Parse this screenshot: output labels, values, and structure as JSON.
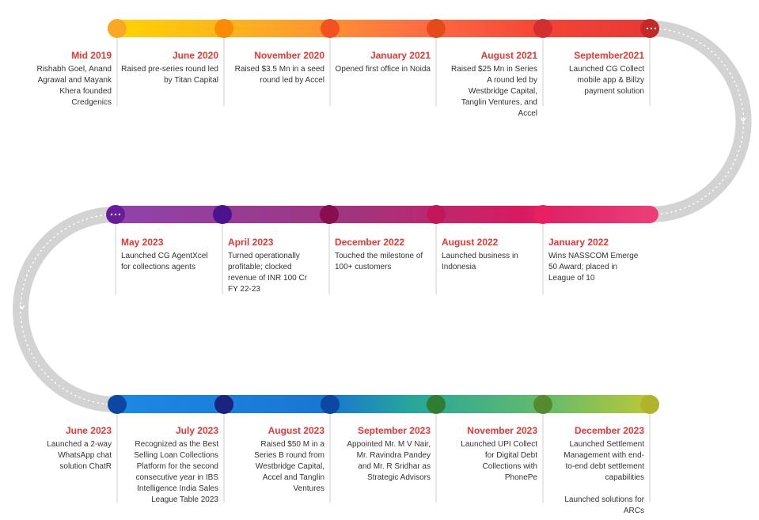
{
  "rows": [
    {
      "direction": "ltr",
      "events": [
        {
          "date": "Mid 2019",
          "text": "Rishabh Goel, Anand Agrawal and Mayank Khera founded Credgenics",
          "color": "#f9a825"
        },
        {
          "date": "June 2020",
          "text": "Raised pre-series round led by Titan Capital",
          "color": "#fb8c00"
        },
        {
          "date": "November 2020",
          "text": "Raised $3.5 Mn in a seed round led by Accel",
          "color": "#f4511e"
        },
        {
          "date": "January 2021",
          "text": "Opened first office in Noida",
          "color": "#e64a19"
        },
        {
          "date": "August 2021",
          "text": "Raised $25 Mn in Series A round led by Westbridge Capital, Tanglin Ventures, and Accel",
          "color": "#d32f2f"
        },
        {
          "date": "September2021",
          "text": "Launched CG Collect mobile app & Billzy payment solution",
          "color": "#c62828"
        }
      ]
    },
    {
      "direction": "rtl",
      "events": [
        {
          "date": "May 2023",
          "text": "Launched CG AgentXcel for collections agents",
          "color": "#6a1b9a"
        },
        {
          "date": "April 2023",
          "text": "Turned operationally profitable; clocked revenue of INR 100 Cr FY 22-23",
          "color": "#4a148c"
        },
        {
          "date": "December 2022",
          "text": "Touched the milestone of 100+ customers",
          "color": "#880e4f"
        },
        {
          "date": "August 2022",
          "text": "Launched business in Indonesia",
          "color": "#c2185b"
        },
        {
          "date": "January 2022",
          "text": "Wins NASSCOM Emerge 50 Award; placed in League of 10",
          "color": "#e91e63"
        }
      ]
    },
    {
      "direction": "ltr",
      "events": [
        {
          "date": "June 2023",
          "text": "Launched a 2-way WhatsApp chat solution ChatR",
          "color": "#0d47a1"
        },
        {
          "date": "July 2023",
          "text": "Recognized as the Best Selling Loan Collections Platform for the second consecutive year in IBS Intelligence India Sales League Table 2023",
          "color": "#1a237e"
        },
        {
          "date": "August 2023",
          "text": "Raised $50 M in a Series B round from Westbridge Capital, Accel and Tanglin Ventures",
          "color": "#0d47a1"
        },
        {
          "date": "September 2023",
          "text": "Appointed Mr. M V Nair, Mr. Ravindra Pandey and Mr. R Sridhar as Strategic Advisors",
          "color": "#2e7d32"
        },
        {
          "date": "November 2023",
          "text": "Launched UPI Collect for Digital Debt Collections with PhonePe",
          "color": "#558b2f"
        },
        {
          "date": "December 2023",
          "text": "Launched Settlement Management with end-to-end debt settlement capabilities",
          "text2": "Launched solutions for ARCs",
          "color": "#afb42b"
        }
      ]
    }
  ],
  "colors": {
    "curve": "#d3d3d3",
    "connector": "#cfcfcf",
    "date_text": "#e53935",
    "body_text": "#333333"
  }
}
